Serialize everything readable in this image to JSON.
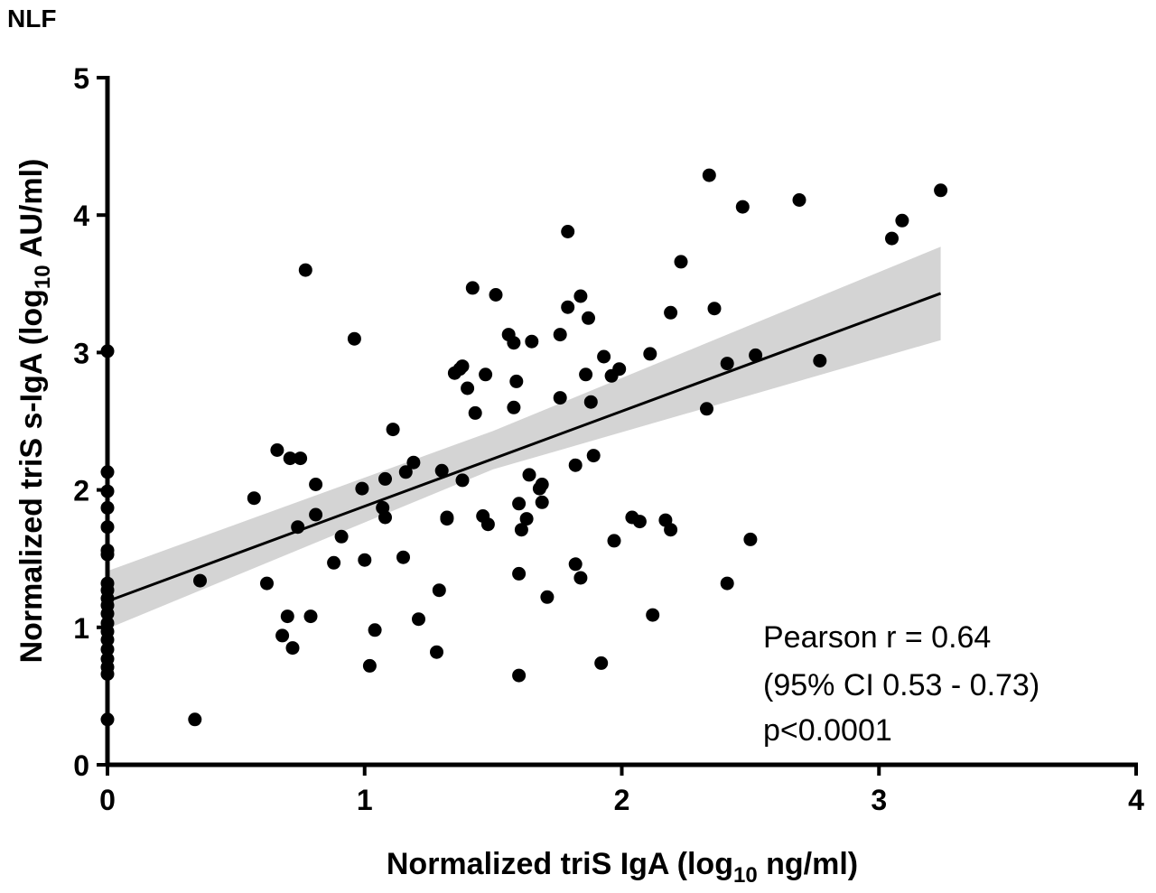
{
  "chart_data": {
    "type": "scatter",
    "panel_label": "NLF",
    "xlabel": {
      "prefix": "Normalized triS IgA (log",
      "sub": "10",
      "suffix": " ng/ml)"
    },
    "ylabel": {
      "prefix": "Normalized triS s-IgA (log",
      "sub": "10",
      "suffix": " AU/ml)"
    },
    "xlim": [
      0,
      4
    ],
    "ylim": [
      0,
      5
    ],
    "x_ticks": [
      "0",
      "1",
      "2",
      "3",
      "4"
    ],
    "y_ticks": [
      "0",
      "1",
      "2",
      "3",
      "4",
      "5"
    ],
    "grid": false,
    "regression": {
      "x": [
        0,
        3.24
      ],
      "y": [
        1.19,
        3.43
      ]
    },
    "confidence_band": {
      "x": [
        0,
        1.5,
        3.24
      ],
      "upper": [
        1.41,
        2.43,
        3.77
      ],
      "lower": [
        0.99,
        2.15,
        3.09
      ]
    },
    "annotations": [
      "Pearson r = 0.64",
      "(95% CI 0.53 - 0.73)",
      "p<0.0001"
    ],
    "points": [
      [
        0,
        3.01
      ],
      [
        0,
        2.13
      ],
      [
        0,
        1.99
      ],
      [
        0,
        1.87
      ],
      [
        0,
        1.73
      ],
      [
        0,
        1.56
      ],
      [
        0,
        1.53
      ],
      [
        0,
        1.32
      ],
      [
        0,
        1.27
      ],
      [
        0,
        1.21
      ],
      [
        0,
        1.16
      ],
      [
        0,
        1.1
      ],
      [
        0,
        1.03
      ],
      [
        0,
        0.97
      ],
      [
        0,
        0.91
      ],
      [
        0,
        0.84
      ],
      [
        0,
        0.77
      ],
      [
        0,
        0.71
      ],
      [
        0,
        0.66
      ],
      [
        0,
        0.33
      ],
      [
        0.34,
        0.33
      ],
      [
        0.36,
        1.34
      ],
      [
        0.57,
        1.94
      ],
      [
        0.62,
        1.32
      ],
      [
        0.66,
        2.29
      ],
      [
        0.68,
        0.94
      ],
      [
        0.7,
        1.08
      ],
      [
        0.71,
        2.23
      ],
      [
        0.72,
        0.85
      ],
      [
        0.74,
        1.73
      ],
      [
        0.75,
        2.23
      ],
      [
        0.77,
        3.6
      ],
      [
        0.79,
        1.08
      ],
      [
        0.81,
        2.04
      ],
      [
        0.81,
        1.82
      ],
      [
        0.88,
        1.47
      ],
      [
        0.91,
        1.66
      ],
      [
        0.96,
        3.1
      ],
      [
        0.99,
        2.01
      ],
      [
        1.0,
        1.49
      ],
      [
        1.02,
        0.72
      ],
      [
        1.04,
        0.98
      ],
      [
        1.07,
        1.87
      ],
      [
        1.08,
        2.08
      ],
      [
        1.08,
        1.8
      ],
      [
        1.11,
        2.44
      ],
      [
        1.15,
        1.51
      ],
      [
        1.16,
        2.13
      ],
      [
        1.19,
        2.2
      ],
      [
        1.21,
        1.06
      ],
      [
        1.28,
        0.82
      ],
      [
        1.29,
        1.27
      ],
      [
        1.3,
        2.14
      ],
      [
        1.32,
        1.8
      ],
      [
        1.32,
        1.79
      ],
      [
        1.35,
        2.85
      ],
      [
        1.37,
        2.88
      ],
      [
        1.38,
        2.9
      ],
      [
        1.38,
        2.07
      ],
      [
        1.4,
        2.74
      ],
      [
        1.42,
        3.47
      ],
      [
        1.43,
        2.56
      ],
      [
        1.46,
        1.81
      ],
      [
        1.47,
        2.84
      ],
      [
        1.48,
        1.75
      ],
      [
        1.51,
        3.42
      ],
      [
        1.56,
        3.13
      ],
      [
        1.58,
        3.07
      ],
      [
        1.58,
        2.6
      ],
      [
        1.59,
        2.79
      ],
      [
        1.6,
        1.9
      ],
      [
        1.6,
        1.39
      ],
      [
        1.6,
        0.65
      ],
      [
        1.61,
        1.71
      ],
      [
        1.63,
        1.79
      ],
      [
        1.64,
        2.11
      ],
      [
        1.65,
        3.08
      ],
      [
        1.68,
        2.01
      ],
      [
        1.69,
        2.04
      ],
      [
        1.69,
        1.91
      ],
      [
        1.71,
        1.22
      ],
      [
        1.76,
        3.13
      ],
      [
        1.76,
        2.67
      ],
      [
        1.79,
        3.88
      ],
      [
        1.79,
        3.33
      ],
      [
        1.82,
        2.18
      ],
      [
        1.82,
        1.46
      ],
      [
        1.84,
        3.41
      ],
      [
        1.84,
        1.36
      ],
      [
        1.86,
        2.84
      ],
      [
        1.87,
        3.25
      ],
      [
        1.88,
        2.64
      ],
      [
        1.89,
        2.25
      ],
      [
        1.92,
        0.74
      ],
      [
        1.93,
        2.97
      ],
      [
        1.96,
        2.83
      ],
      [
        1.97,
        1.63
      ],
      [
        1.99,
        2.88
      ],
      [
        2.04,
        1.8
      ],
      [
        2.07,
        1.77
      ],
      [
        2.11,
        2.99
      ],
      [
        2.12,
        1.09
      ],
      [
        2.17,
        1.78
      ],
      [
        2.19,
        3.29
      ],
      [
        2.19,
        1.71
      ],
      [
        2.23,
        3.66
      ],
      [
        2.33,
        2.59
      ],
      [
        2.34,
        4.29
      ],
      [
        2.36,
        3.32
      ],
      [
        2.41,
        1.32
      ],
      [
        2.41,
        2.92
      ],
      [
        2.47,
        4.06
      ],
      [
        2.5,
        1.64
      ],
      [
        2.52,
        2.98
      ],
      [
        2.69,
        4.11
      ],
      [
        2.77,
        2.94
      ],
      [
        3.05,
        3.83
      ],
      [
        3.09,
        3.96
      ],
      [
        3.24,
        4.18
      ]
    ]
  }
}
